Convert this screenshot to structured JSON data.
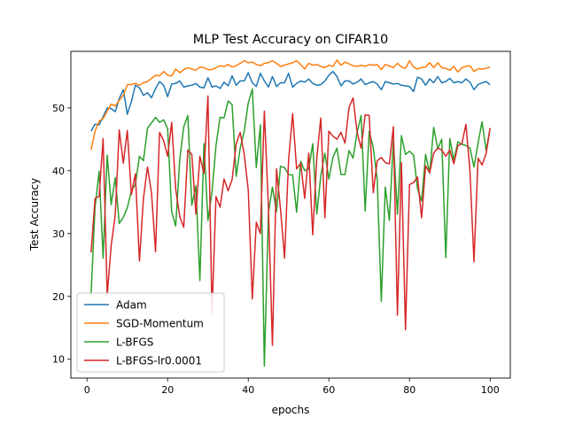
{
  "chart_data": {
    "type": "line",
    "title": "MLP Test Accuracy on CIFAR10",
    "xlabel": "epochs",
    "ylabel": "Test Accuracy",
    "xlim": [
      -4,
      105
    ],
    "ylim": [
      7,
      59
    ],
    "xticks": [
      0,
      20,
      40,
      60,
      80,
      100
    ],
    "yticks": [
      10,
      20,
      30,
      40,
      50
    ],
    "grid": false,
    "legend_position": "lower-left",
    "x": [
      1,
      2,
      3,
      4,
      5,
      6,
      7,
      8,
      9,
      10,
      11,
      12,
      13,
      14,
      15,
      16,
      17,
      18,
      19,
      20,
      21,
      22,
      23,
      24,
      25,
      26,
      27,
      28,
      29,
      30,
      31,
      32,
      33,
      34,
      35,
      36,
      37,
      38,
      39,
      40,
      41,
      42,
      43,
      44,
      45,
      46,
      47,
      48,
      49,
      50,
      51,
      52,
      53,
      54,
      55,
      56,
      57,
      58,
      59,
      60,
      61,
      62,
      63,
      64,
      65,
      66,
      67,
      68,
      69,
      70,
      71,
      72,
      73,
      74,
      75,
      76,
      77,
      78,
      79,
      80,
      81,
      82,
      83,
      84,
      85,
      86,
      87,
      88,
      89,
      90,
      91,
      92,
      93,
      94,
      95,
      96,
      97,
      98,
      99,
      100
    ],
    "series": [
      {
        "name": "Adam",
        "color": "#1f77b4",
        "values": [
          46.3,
          47.4,
          47.3,
          48.6,
          50.0,
          49.9,
          49.4,
          51.5,
          52.9,
          49.0,
          51.0,
          53.6,
          53.2,
          52.0,
          52.4,
          51.6,
          53.1,
          54.2,
          53.6,
          51.8,
          53.8,
          53.9,
          54.3,
          53.3,
          53.5,
          53.6,
          53.9,
          53.3,
          53.2,
          54.8,
          53.3,
          53.5,
          53.1,
          54.1,
          53.5,
          55.1,
          53.6,
          54.3,
          54.3,
          55.6,
          54.0,
          53.4,
          55.5,
          54.3,
          53.3,
          55.0,
          53.4,
          54.0,
          54.0,
          55.5,
          53.3,
          53.9,
          54.3,
          54.1,
          54.6,
          53.9,
          53.6,
          53.7,
          54.3,
          55.2,
          55.8,
          55.0,
          53.5,
          54.3,
          54.3,
          53.8,
          54.1,
          54.6,
          53.7,
          54.0,
          54.2,
          53.8,
          52.9,
          54.2,
          54.0,
          53.8,
          53.9,
          53.6,
          53.5,
          53.4,
          52.6,
          54.9,
          54.6,
          53.6,
          54.6,
          54.0,
          55.0,
          54.0,
          54.2,
          54.7,
          54.0,
          54.2,
          54.0,
          54.6,
          54.1,
          52.9,
          53.7,
          54.0,
          54.2,
          53.7
        ]
      },
      {
        "name": "SGD-Momentum",
        "color": "#ff7f0e",
        "values": [
          43.3,
          46.3,
          47.9,
          48.3,
          49.5,
          50.6,
          50.3,
          51.2,
          52.0,
          53.7,
          53.7,
          53.9,
          53.6,
          54.0,
          54.2,
          54.7,
          55.2,
          55.1,
          55.8,
          55.2,
          55.1,
          56.2,
          55.6,
          56.1,
          56.4,
          56.2,
          56.0,
          56.5,
          56.4,
          56.1,
          56.1,
          56.4,
          56.7,
          56.6,
          56.9,
          56.5,
          56.7,
          57.1,
          57.5,
          57.2,
          57.3,
          56.9,
          56.7,
          57.1,
          57.2,
          57.5,
          57.1,
          56.6,
          56.8,
          57.0,
          57.2,
          57.5,
          56.9,
          56.2,
          57.1,
          56.8,
          56.9,
          56.6,
          56.4,
          56.8,
          56.6,
          57.6,
          56.8,
          57.3,
          57.0,
          56.7,
          56.6,
          56.8,
          56.6,
          56.9,
          56.8,
          56.9,
          56.1,
          56.9,
          56.7,
          56.4,
          57.1,
          56.5,
          56.3,
          57.5,
          56.5,
          56.2,
          56.4,
          56.5,
          57.2,
          56.4,
          57.2,
          56.4,
          56.3,
          56.0,
          56.6,
          55.7,
          56.4,
          56.6,
          56.7,
          55.8,
          56.2,
          56.2,
          56.3,
          56.5
        ]
      },
      {
        "name": "L-BFGS",
        "color": "#2ca02c",
        "values": [
          20.3,
          34.2,
          39.9,
          26.1,
          42.5,
          34.6,
          38.9,
          31.6,
          32.6,
          34.1,
          36.8,
          37.8,
          42.3,
          41.6,
          46.8,
          47.6,
          48.5,
          47.7,
          48.1,
          46.7,
          33.5,
          31.2,
          41.8,
          47.0,
          48.8,
          34.5,
          37.6,
          22.5,
          44.3,
          32.1,
          36.6,
          44.0,
          48.5,
          48.4,
          51.1,
          50.5,
          39.1,
          43.6,
          46.3,
          50.8,
          53.0,
          40.5,
          47.3,
          8.9,
          33.3,
          37.4,
          33.5,
          40.7,
          40.5,
          39.4,
          39.3,
          33.4,
          41.5,
          40.0,
          40.3,
          44.3,
          33.1,
          39.2,
          42.8,
          38.7,
          42.1,
          43.6,
          39.4,
          39.4,
          43.2,
          42.0,
          46.1,
          48.8,
          33.6,
          46.3,
          43.7,
          38.6,
          19.2,
          37.4,
          32.1,
          44.9,
          33.1,
          45.6,
          42.6,
          43.1,
          42.5,
          37.1,
          35.2,
          42.6,
          39.6,
          46.9,
          43.5,
          45.0,
          26.2,
          45.1,
          41.7,
          44.6,
          44.2,
          44.0,
          43.6,
          40.6,
          44.4,
          47.8,
          43.2,
          46.8
        ]
      },
      {
        "name": "L-BFGS-lr0.0001",
        "color": "#d62728",
        "values": [
          27.0,
          35.6,
          35.9,
          45.1,
          20.2,
          28.1,
          33.0,
          46.5,
          41.2,
          46.4,
          36.2,
          39.5,
          25.6,
          35.6,
          40.6,
          36.5,
          27.1,
          46.1,
          44.8,
          42.3,
          47.7,
          37.1,
          32.7,
          31.0,
          43.3,
          42.6,
          33.1,
          42.3,
          39.6,
          51.9,
          17.4,
          35.9,
          34.2,
          38.7,
          36.8,
          38.6,
          44.3,
          46.1,
          42.6,
          37.0,
          19.6,
          31.8,
          30.0,
          49.5,
          34.1,
          12.2,
          40.3,
          33.9,
          26.1,
          41.6,
          49.1,
          40.3,
          41.2,
          35.6,
          42.8,
          29.8,
          42.1,
          48.4,
          32.5,
          46.3,
          45.5,
          45.0,
          46.1,
          44.4,
          50.1,
          51.6,
          46.1,
          43.6,
          48.9,
          48.8,
          36.5,
          41.6,
          42.1,
          41.3,
          41.1,
          47.0,
          17.0,
          41.3,
          14.7,
          37.8,
          38.1,
          39.0,
          32.5,
          40.8,
          39.7,
          42.8,
          43.6,
          43.3,
          42.3,
          43.3,
          41.1,
          44.0,
          44.3,
          47.4,
          39.9,
          25.5,
          42.0,
          40.9,
          42.7,
          46.8
        ]
      }
    ]
  }
}
